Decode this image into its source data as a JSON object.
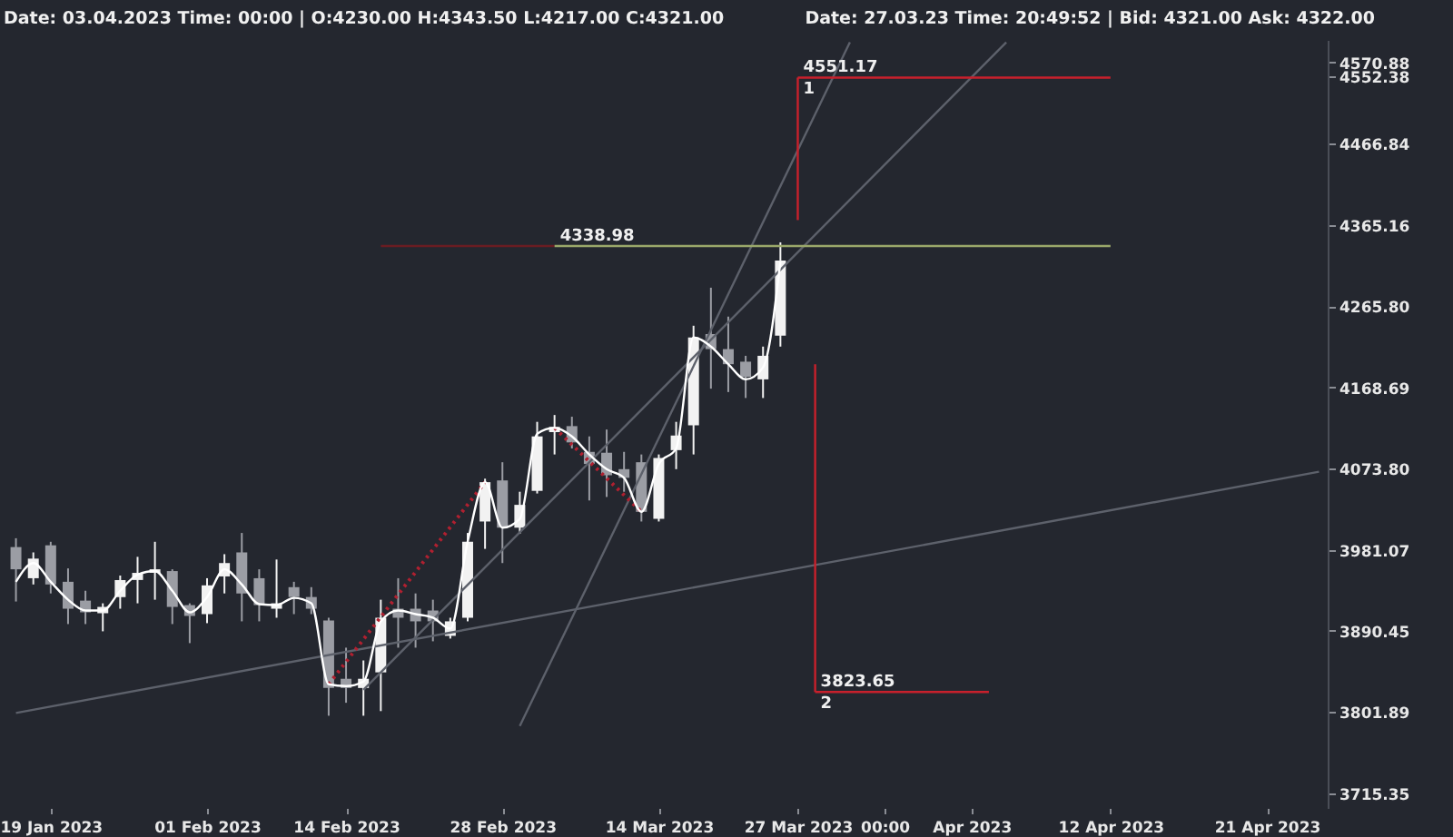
{
  "chart_data": {
    "type": "candlestick",
    "log": "y",
    "ylim": [
      3700,
      4600
    ],
    "categories": [
      null,
      null,
      "19 Jan 2023",
      null,
      null,
      null,
      null,
      null,
      null,
      null,
      null,
      "01 Feb 2023",
      null,
      null,
      null,
      null,
      null,
      null,
      null,
      "14 Feb 2023",
      null,
      null,
      null,
      null,
      null,
      null,
      null,
      null,
      "28 Feb 2023",
      null,
      null,
      null,
      null,
      null,
      null,
      null,
      null,
      "14 Mar 2023",
      null,
      null,
      null,
      null,
      null,
      null,
      null,
      "27 Mar 2023",
      null,
      null,
      null,
      null,
      "00:00",
      null,
      null,
      null,
      null,
      "Apr 2023",
      null,
      null,
      null,
      null,
      null,
      null,
      null,
      "12 Apr 2023",
      null,
      null,
      null,
      null,
      null,
      null,
      null,
      null,
      "21 Apr 2023",
      null,
      null,
      null
    ],
    "yticks": [
      3715.35,
      3801.89,
      3890.45,
      3981.07,
      {
        "value": 4073.8,
        "label": "4073.80"
      },
      4168.69,
      {
        "value": 4265.8,
        "label": "4265.80"
      },
      4365.16,
      4466.84,
      4552.38,
      4570.88
    ],
    "series": [
      {
        "ohlc": [
          [
            3984,
            3994,
            3923,
            3959
          ],
          [
            3949,
            3978,
            3942,
            3971
          ],
          [
            3986,
            3990,
            3932,
            3942
          ],
          [
            3945,
            3960,
            3898,
            3915
          ],
          [
            3924,
            3935,
            3898,
            3911
          ],
          [
            3910,
            3921,
            3890,
            3917
          ],
          [
            3928,
            3952,
            3915,
            3947
          ],
          [
            3947,
            3973,
            3921,
            3955
          ],
          [
            3955,
            3990,
            3925,
            3959
          ],
          [
            3957,
            3959,
            3898,
            3917
          ],
          [
            3919,
            3921,
            3877,
            3907
          ],
          [
            3909,
            3949,
            3899,
            3941
          ],
          [
            3951,
            3976,
            3932,
            3966
          ],
          [
            3978,
            4000,
            3901,
            3932
          ],
          [
            3949,
            3959,
            3901,
            3919
          ],
          [
            3915,
            3970,
            3905,
            3921
          ],
          [
            3939,
            3945,
            3909,
            3928
          ],
          [
            3928,
            3939,
            3909,
            3915
          ],
          [
            3902,
            3905,
            3798,
            3828
          ],
          [
            3838,
            3872,
            3812,
            3828
          ],
          [
            3828,
            3858,
            3798,
            3838
          ],
          [
            3845,
            3925,
            3803,
            3905
          ],
          [
            3915,
            3949,
            3872,
            3905
          ],
          [
            3915,
            3932,
            3872,
            3901
          ],
          [
            3913,
            3925,
            3879,
            3901
          ],
          [
            3885,
            3905,
            3882,
            3901
          ],
          [
            3905,
            4000,
            3901,
            3990
          ],
          [
            4013,
            4062,
            3982,
            4058
          ],
          [
            4060,
            4081,
            3966,
            4006
          ],
          [
            4006,
            4047,
            3999,
            4032
          ],
          [
            4048,
            4128,
            4045,
            4111
          ],
          [
            4116,
            4136,
            4090,
            4122
          ],
          [
            4123,
            4134,
            4097,
            4104
          ],
          [
            4093,
            4111,
            4037,
            4079
          ],
          [
            4092,
            4119,
            4041,
            4066
          ],
          [
            4073,
            4093,
            4047,
            4063
          ],
          [
            4081,
            4090,
            4013,
            4024
          ],
          [
            4016,
            4090,
            4013,
            4086
          ],
          [
            4095,
            4128,
            4073,
            4112
          ],
          [
            4124,
            4242,
            4090,
            4228
          ],
          [
            4232,
            4288,
            4167,
            4214
          ],
          [
            4214,
            4253,
            4163,
            4196
          ],
          [
            4199,
            4206,
            4156,
            4181
          ],
          [
            4178,
            4217,
            4156,
            4206
          ],
          [
            4230,
            4343.5,
            4217,
            4321
          ],
          null,
          null,
          null,
          null,
          null,
          null,
          null,
          null,
          null,
          null,
          null,
          null,
          null,
          null,
          null,
          null,
          null,
          null,
          null,
          null,
          null,
          null,
          null,
          null,
          null,
          null,
          null,
          null,
          null,
          null,
          null
        ],
        "colors": [
          "#9b9da4",
          "#f2f2f2",
          "#9b9da4",
          "#9b9da4",
          "#9b9da4",
          "#f2f2f2",
          "#f2f2f2",
          "#f2f2f2",
          "#f2f2f2",
          "#9b9da4",
          "#9b9da4",
          "#f2f2f2",
          "#f2f2f2",
          "#9b9da4",
          "#9b9da4",
          "#f2f2f2",
          "#9b9da4",
          "#9b9da4",
          "#9b9da4",
          "#9b9da4",
          "#f2f2f2",
          "#f2f2f2",
          "#9b9da4",
          "#9b9da4",
          "#9b9da4",
          "#f2f2f2",
          "#f2f2f2",
          "#f2f2f2",
          "#9b9da4",
          "#f2f2f2",
          "#f2f2f2",
          "#f2f2f2",
          "#9b9da4",
          "#9b9da4",
          "#9b9da4",
          "#9b9da4",
          "#9b9da4",
          "#f2f2f2",
          "#f2f2f2",
          "#f2f2f2",
          "#9b9da4",
          "#9b9da4",
          "#9b9da4",
          "#f2f2f2",
          "#f2f2f2",
          null,
          null,
          null,
          null,
          null,
          null,
          null,
          null,
          null,
          null,
          null,
          null,
          null,
          null,
          null,
          null,
          null,
          null,
          null,
          null,
          null,
          null,
          null,
          null,
          null,
          null,
          null,
          null,
          null,
          null,
          null
        ]
      },
      {
        "type": "line",
        "color": "#5d616b",
        "values": [
          3801,
          null,
          null,
          null,
          null,
          null,
          null,
          null,
          null,
          null,
          null,
          null,
          null,
          null,
          null,
          null,
          null,
          null,
          null,
          null,
          null,
          null,
          null,
          null,
          null,
          null,
          null,
          null,
          null,
          null,
          null,
          null,
          null,
          null,
          null,
          null,
          null,
          null,
          null,
          null,
          null,
          null,
          null,
          null,
          null,
          null,
          null,
          null,
          null,
          null,
          null,
          null,
          null,
          null,
          null,
          null,
          null,
          null,
          null,
          null,
          null,
          null,
          null,
          null,
          null,
          null,
          null,
          null,
          null,
          null,
          null,
          null,
          null,
          null,
          null,
          4070
        ]
      },
      {
        "type": "line",
        "color": "#5d616b",
        "values": [
          null,
          null,
          null,
          null,
          null,
          null,
          null,
          null,
          null,
          null,
          null,
          null,
          null,
          null,
          null,
          null,
          null,
          null,
          null,
          null,
          3826,
          null,
          null,
          null,
          null,
          null,
          null,
          null,
          null,
          null,
          null,
          null,
          null,
          null,
          null,
          null,
          null,
          null,
          null,
          null,
          null,
          null,
          null,
          null,
          null,
          null,
          null,
          null,
          null,
          null,
          null,
          null,
          null,
          null,
          null,
          null,
          null,
          4597,
          null,
          null,
          null,
          null,
          null,
          null,
          null,
          null,
          null,
          null,
          null,
          null,
          null,
          null,
          null,
          null,
          null,
          null
        ]
      },
      {
        "type": "line",
        "color": "#5d616b",
        "values": [
          null,
          null,
          null,
          null,
          null,
          null,
          null,
          null,
          null,
          null,
          null,
          null,
          null,
          null,
          null,
          null,
          null,
          null,
          null,
          null,
          null,
          null,
          null,
          null,
          null,
          null,
          null,
          null,
          null,
          3787,
          null,
          null,
          null,
          null,
          null,
          null,
          null,
          null,
          null,
          null,
          null,
          null,
          null,
          null,
          null,
          null,
          null,
          null,
          4597,
          null,
          null,
          null,
          null,
          null,
          null,
          null,
          null,
          null,
          null,
          null,
          null,
          null,
          null,
          null,
          null,
          null,
          null,
          null,
          null,
          null,
          null,
          null,
          null,
          null,
          null,
          null
        ]
      },
      {
        "type": "line",
        "color": "#6a1c22",
        "values": [
          null,
          null,
          null,
          null,
          null,
          null,
          null,
          null,
          null,
          null,
          null,
          null,
          null,
          null,
          null,
          null,
          null,
          null,
          null,
          null,
          null,
          4338.98,
          null,
          null,
          null,
          null,
          null,
          null,
          null,
          null,
          null,
          4338.98,
          null,
          null,
          null,
          null,
          null,
          null,
          null,
          null,
          null,
          null,
          null,
          null,
          null,
          null,
          null,
          null,
          null,
          null,
          null,
          null,
          null,
          null,
          null,
          null,
          null,
          null,
          null,
          null,
          null,
          null,
          null,
          null,
          null,
          null,
          null,
          null,
          null,
          null,
          null,
          null,
          null,
          null,
          null,
          null
        ]
      },
      {
        "type": "line",
        "color": "#9aa86a",
        "values": [
          null,
          null,
          null,
          null,
          null,
          null,
          null,
          null,
          null,
          null,
          null,
          null,
          null,
          null,
          null,
          null,
          null,
          null,
          null,
          null,
          null,
          null,
          null,
          null,
          null,
          null,
          null,
          null,
          null,
          null,
          null,
          4338.98,
          null,
          null,
          null,
          null,
          null,
          null,
          null,
          null,
          null,
          null,
          null,
          null,
          null,
          null,
          null,
          null,
          null,
          null,
          null,
          null,
          null,
          null,
          null,
          null,
          null,
          null,
          null,
          null,
          null,
          null,
          null,
          4338.98,
          null,
          null,
          null,
          null,
          null,
          null,
          null,
          null,
          null,
          null,
          null,
          null
        ]
      },
      {
        "type": "line",
        "color": "#c8202c",
        "values": [
          null,
          null,
          null,
          null,
          null,
          null,
          null,
          null,
          null,
          null,
          null,
          null,
          null,
          null,
          null,
          null,
          null,
          null,
          null,
          null,
          null,
          null,
          null,
          null,
          null,
          null,
          null,
          null,
          null,
          null,
          null,
          null,
          null,
          null,
          null,
          null,
          null,
          null,
          null,
          null,
          null,
          null,
          null,
          null,
          null,
          4551.17,
          null,
          null,
          null,
          null,
          null,
          null,
          null,
          null,
          null,
          null,
          null,
          null,
          null,
          null,
          null,
          null,
          null,
          4551.17,
          null,
          null,
          null,
          null,
          null,
          null,
          null,
          null,
          null,
          null,
          null,
          null
        ],
        "errors": [
          null,
          null,
          null,
          null,
          null,
          null,
          null,
          null,
          null,
          null,
          null,
          null,
          null,
          null,
          null,
          null,
          null,
          null,
          null,
          null,
          null,
          null,
          null,
          null,
          null,
          null,
          null,
          null,
          null,
          null,
          null,
          null,
          null,
          null,
          null,
          null,
          null,
          null,
          null,
          null,
          null,
          null,
          null,
          null,
          null,
          [
            4371,
            4551.17
          ],
          null,
          null,
          null,
          null,
          null,
          null,
          null,
          null,
          null,
          null,
          null,
          null,
          null,
          null,
          null,
          null,
          null,
          null,
          null,
          null,
          null,
          null,
          null,
          null,
          null,
          null,
          null,
          null,
          null,
          null
        ]
      },
      {
        "type": "line",
        "color": "#c8202c",
        "values": [
          null,
          null,
          null,
          null,
          null,
          null,
          null,
          null,
          null,
          null,
          null,
          null,
          null,
          null,
          null,
          null,
          null,
          null,
          null,
          null,
          null,
          null,
          null,
          null,
          null,
          null,
          null,
          null,
          null,
          null,
          null,
          null,
          null,
          null,
          null,
          null,
          null,
          null,
          null,
          null,
          null,
          null,
          null,
          null,
          null,
          null,
          3823.65,
          null,
          null,
          null,
          null,
          null,
          null,
          null,
          null,
          null,
          3823.65,
          null,
          null,
          null,
          null,
          null,
          null,
          null,
          null,
          null,
          null,
          null,
          null,
          null,
          null,
          null,
          null,
          null,
          null,
          null
        ],
        "errors": [
          null,
          null,
          null,
          null,
          null,
          null,
          null,
          null,
          null,
          null,
          null,
          null,
          null,
          null,
          null,
          null,
          null,
          null,
          null,
          null,
          null,
          null,
          null,
          null,
          null,
          null,
          null,
          null,
          null,
          null,
          null,
          null,
          null,
          null,
          null,
          null,
          null,
          null,
          null,
          null,
          null,
          null,
          null,
          null,
          null,
          null,
          [
            3823.65,
            4196
          ],
          null,
          null,
          null,
          null,
          null,
          null,
          null,
          null,
          null,
          null,
          null,
          null,
          null,
          null,
          null,
          null,
          null,
          null,
          null,
          null,
          null,
          null,
          null,
          null,
          null,
          null,
          null,
          null,
          null
        ]
      },
      {
        "type": "line",
        "color": "#b02030",
        "line_style": "dotted",
        "values": [
          null,
          null,
          null,
          null,
          null,
          null,
          null,
          null,
          null,
          null,
          null,
          null,
          null,
          null,
          null,
          null,
          null,
          null,
          3832,
          null,
          null,
          null,
          null,
          null,
          null,
          null,
          null,
          4058,
          null,
          null,
          null,
          null,
          null,
          null,
          null,
          null,
          null,
          null,
          null,
          null,
          null,
          null,
          null,
          null,
          null,
          null,
          null,
          null,
          null,
          null,
          null,
          null,
          null,
          null,
          null,
          null,
          null,
          null,
          null,
          null,
          null,
          null,
          null,
          null,
          null,
          null,
          null,
          null,
          null,
          null,
          null,
          null,
          null,
          null,
          null,
          null
        ]
      },
      {
        "type": "line",
        "color": "#b02030",
        "line_style": "dotted",
        "values": [
          null,
          null,
          null,
          null,
          null,
          null,
          null,
          null,
          null,
          null,
          null,
          null,
          null,
          null,
          null,
          null,
          null,
          null,
          null,
          null,
          null,
          null,
          null,
          null,
          null,
          null,
          null,
          null,
          null,
          null,
          null,
          4121,
          null,
          null,
          null,
          null,
          4024,
          null,
          null,
          null,
          null,
          null,
          null,
          null,
          null,
          null,
          null,
          null,
          null,
          null,
          null,
          null,
          null,
          null,
          null,
          null,
          null,
          null,
          null,
          null,
          null,
          null,
          null,
          null,
          null,
          null,
          null,
          null,
          null,
          null,
          null,
          null,
          null,
          null,
          null,
          null
        ]
      },
      {
        "type": "line",
        "color": "#ffffff",
        "values": [
          3945,
          3966,
          3945,
          3925,
          3913,
          3913,
          3935,
          3953,
          3957,
          3935,
          3911,
          3928,
          3959,
          3942,
          3920,
          3919,
          3927,
          3921,
          3832,
          3830,
          3835,
          3901,
          3913,
          3909,
          3905,
          3893,
          3990,
          4058,
          4006,
          4016,
          4114,
          4121,
          4111,
          4090,
          4073,
          4063,
          4024,
          4079,
          4097,
          4228,
          4217,
          4196,
          4178,
          4192,
          4320,
          null,
          null,
          null,
          null,
          null,
          null,
          null,
          null,
          null,
          null,
          null,
          null,
          null,
          null,
          null,
          null,
          null,
          null,
          null,
          null,
          null,
          null,
          null,
          null,
          null,
          null,
          null,
          null,
          null,
          null,
          null
        ]
      }
    ],
    "annotations": [
      "Date: 03.04.2023 Time: 00:00 | O:4230.00 H:4343.50 L:4217.00 C:4321.00",
      "Date: 27.03.23 Time: 20:49:52 | Bid: 4321.00 Ask: 4322.00",
      {
        "text": "4551.17",
        "y": 4551.17
      },
      {
        "text": "1",
        "y": 4551.17
      },
      {
        "text": "4338.98",
        "y": 4338.98
      },
      {
        "text": "3823.65",
        "y": 3823.65
      },
      {
        "text": "2",
        "y": 3823.65
      }
    ]
  }
}
